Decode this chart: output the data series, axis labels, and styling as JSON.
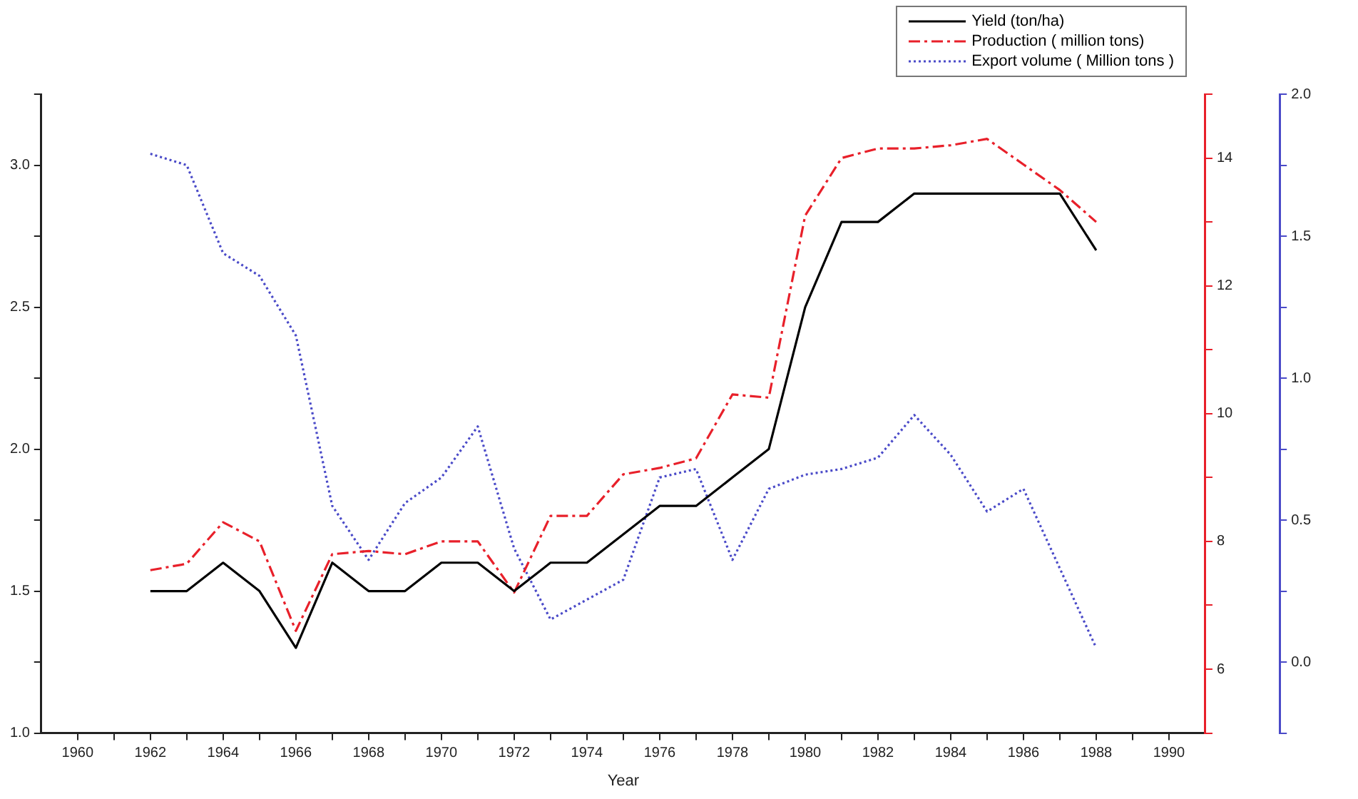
{
  "chart_data": {
    "type": "line",
    "xlabel": "Year",
    "x": [
      1962,
      1963,
      1964,
      1965,
      1966,
      1967,
      1968,
      1969,
      1970,
      1971,
      1972,
      1973,
      1974,
      1975,
      1976,
      1977,
      1978,
      1979,
      1980,
      1981,
      1982,
      1983,
      1984,
      1985,
      1986,
      1987,
      1988
    ],
    "series": [
      {
        "name": "Yield (ton/ha)",
        "color": "#000000",
        "line_style": "solid",
        "values": [
          1.5,
          1.5,
          1.6,
          1.5,
          1.3,
          1.6,
          1.5,
          1.5,
          1.6,
          1.6,
          1.5,
          1.6,
          1.6,
          1.7,
          1.8,
          1.8,
          1.9,
          2.0,
          2.5,
          2.8,
          2.8,
          2.9,
          2.9,
          2.9,
          2.9,
          2.9,
          2.7
        ]
      },
      {
        "name": "Production ( million tons)",
        "color": "#e8202a",
        "line_style": "dashed",
        "axis": "y2",
        "values": [
          7.55,
          7.65,
          8.3,
          8.0,
          6.6,
          7.8,
          7.85,
          7.8,
          8.0,
          8.0,
          7.2,
          8.4,
          8.4,
          9.05,
          9.15,
          9.3,
          10.3,
          10.25,
          13.1,
          14.0,
          14.15,
          14.15,
          14.2,
          14.3,
          13.9,
          13.5,
          13.0
        ]
      },
      {
        "name": "Export volume ( Million tons )",
        "color": "#4a4ac8",
        "line_style": "dotted",
        "axis": "y3",
        "values": [
          1.79,
          1.75,
          1.44,
          1.36,
          1.15,
          0.55,
          0.36,
          0.56,
          0.65,
          0.83,
          0.4,
          0.15,
          0.22,
          0.29,
          0.65,
          0.68,
          0.36,
          0.61,
          0.66,
          0.68,
          0.72,
          0.87,
          0.73,
          0.53,
          0.61,
          0.33,
          0.05
        ]
      }
    ],
    "xlim": [
      1959,
      1991
    ],
    "xticks": [
      1960,
      {
        "value": 1961,
        "label": null
      },
      1962,
      {
        "value": 1963,
        "label": null
      },
      1964,
      {
        "value": 1965,
        "label": null
      },
      1966,
      {
        "value": 1967,
        "label": null
      },
      1968,
      {
        "value": 1969,
        "label": null
      },
      1970,
      {
        "value": 1971,
        "label": null
      },
      1972,
      {
        "value": 1973,
        "label": null
      },
      1974,
      {
        "value": 1975,
        "label": null
      },
      1976,
      {
        "value": 1977,
        "label": null
      },
      1978,
      {
        "value": 1979,
        "label": null
      },
      1980,
      {
        "value": 1981,
        "label": null
      },
      1982,
      {
        "value": 1983,
        "label": null
      },
      1984,
      {
        "value": 1985,
        "label": null
      },
      1986,
      {
        "value": 1987,
        "label": null
      },
      1988,
      {
        "value": 1989,
        "label": null
      },
      1990
    ],
    "ylim": [
      1.0,
      3.25
    ],
    "yticks": [
      {
        "value": 1.0,
        "label": "1.0"
      },
      {
        "value": 1.25,
        "label": null
      },
      {
        "value": 1.5,
        "label": "1.5"
      },
      {
        "value": 1.75,
        "label": null
      },
      {
        "value": 2.0,
        "label": "2.0"
      },
      {
        "value": 2.25,
        "label": null
      },
      {
        "value": 2.5,
        "label": "2.5"
      },
      {
        "value": 2.75,
        "label": null
      },
      {
        "value": 3.0,
        "label": "3.0"
      },
      {
        "value": 3.25,
        "label": null
      }
    ],
    "y2lim": [
      5,
      15
    ],
    "y2ticks": [
      {
        "value": 5,
        "label": null
      },
      6,
      {
        "value": 7,
        "label": null
      },
      8,
      {
        "value": 9,
        "label": null
      },
      10,
      {
        "value": 11,
        "label": null
      },
      12,
      {
        "value": 13,
        "label": null
      },
      14,
      {
        "value": 15,
        "label": null
      }
    ],
    "y3lim": [
      -0.25,
      2.0
    ],
    "y3ticks": [
      {
        "value": -0.25,
        "label": null
      },
      {
        "value": 0,
        "label": "0.0"
      },
      {
        "value": 0.25,
        "label": null
      },
      {
        "value": 0.5,
        "label": "0.5"
      },
      {
        "value": 0.75,
        "label": null
      },
      {
        "value": 1.0,
        "label": "1.0"
      },
      {
        "value": 1.25,
        "label": null
      },
      {
        "value": 1.5,
        "label": "1.5"
      },
      {
        "value": 1.75,
        "label": null
      },
      {
        "value": 2.0,
        "label": "2.0"
      }
    ],
    "grid": false,
    "legend": "top right",
    "marker": "none"
  }
}
